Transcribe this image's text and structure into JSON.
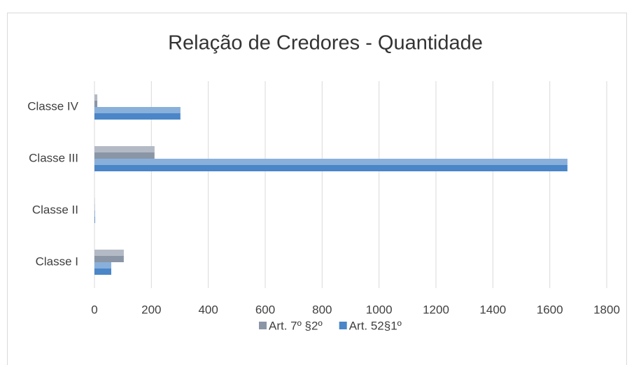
{
  "chart_data": {
    "type": "bar",
    "orientation": "horizontal",
    "title": "Relação de Credores - Quantidade",
    "categories": [
      "Classe I",
      "Classe II",
      "Classe III",
      "Classe IV"
    ],
    "series": [
      {
        "name": "Art. 7º §2º",
        "color": "#8a96a6",
        "values": [
          103,
          1,
          211,
          10
        ]
      },
      {
        "name": "Art. 52§1º",
        "color": "#4a86c8",
        "values": [
          59,
          2,
          1662,
          302
        ]
      }
    ],
    "xlim": [
      0,
      1800
    ],
    "xticks": [
      0,
      200,
      400,
      600,
      800,
      1000,
      1200,
      1400,
      1600,
      1800
    ],
    "grid": true,
    "legend": "bottom"
  }
}
